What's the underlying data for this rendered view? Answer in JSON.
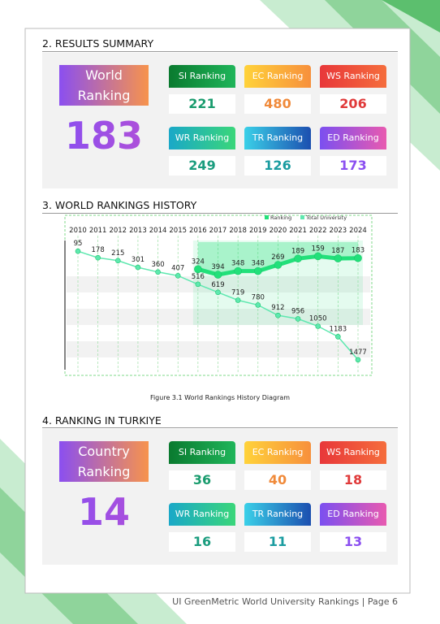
{
  "summary": {
    "title": "2. RESULTS SUMMARY",
    "main": {
      "label": "World Ranking",
      "value": 183
    },
    "cards": [
      {
        "label": "SI Ranking",
        "value": 221
      },
      {
        "label": "EC Ranking",
        "value": 480
      },
      {
        "label": "WS Ranking",
        "value": 206
      },
      {
        "label": "WR Ranking",
        "value": 249
      },
      {
        "label": "TR Ranking",
        "value": 126
      },
      {
        "label": "ED Ranking",
        "value": 173
      }
    ]
  },
  "chart_data": {
    "type": "line",
    "title": "3. WORLD RANKINGS HISTORY",
    "caption": "Figure 3.1 World Rankings History Diagram",
    "categories": [
      "2010",
      "2011",
      "2012",
      "2013",
      "2014",
      "2015",
      "2016",
      "2017",
      "2018",
      "2019",
      "2020",
      "2021",
      "2022",
      "2023",
      "2024"
    ],
    "series": [
      {
        "name": "Ranking",
        "color": "#22e07a",
        "values": [
          null,
          null,
          null,
          null,
          null,
          null,
          324,
          394,
          348,
          348,
          269,
          189,
          159,
          187,
          183
        ]
      },
      {
        "name": "Total University",
        "color": "#5fe8b0",
        "values": [
          95,
          178,
          215,
          301,
          360,
          407,
          516,
          619,
          719,
          780,
          912,
          956,
          1050,
          1183,
          1477
        ]
      }
    ],
    "ylim": [
      0,
      1500
    ],
    "y_inverted": true,
    "legend": "top-right"
  },
  "turkiye": {
    "title": "4. RANKING IN TURKIYE",
    "main": {
      "label": "Country Ranking",
      "value": 14
    },
    "cards": [
      {
        "label": "SI Ranking",
        "value": 36
      },
      {
        "label": "EC Ranking",
        "value": 40
      },
      {
        "label": "WS Ranking",
        "value": 18
      },
      {
        "label": "WR Ranking",
        "value": 16
      },
      {
        "label": "TR Ranking",
        "value": 11
      },
      {
        "label": "ED Ranking",
        "value": 13
      }
    ]
  },
  "footer": "UI GreenMetric World University Rankings | Page 6"
}
